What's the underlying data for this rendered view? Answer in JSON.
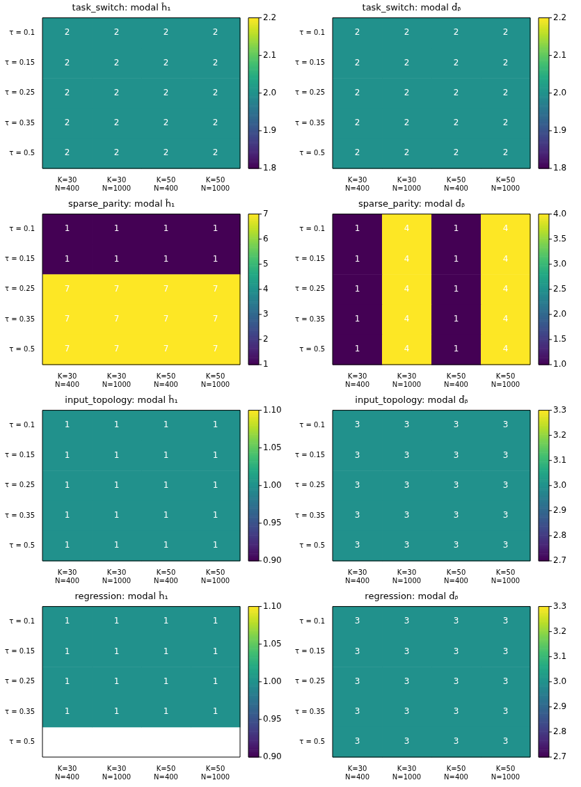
{
  "chart_data": [
    {
      "type": "heatmap",
      "title": "task_switch: modal ĥ₁",
      "categories": [
        "K=30 N=400",
        "K=30 N=1000",
        "K=50 N=400",
        "K=50 N=1000"
      ],
      "y_categories": [
        "τ = 0.1",
        "τ = 0.15",
        "τ = 0.25",
        "τ = 0.35",
        "τ = 0.5"
      ],
      "cells": [
        [
          2,
          2,
          2,
          2
        ],
        [
          2,
          2,
          2,
          2
        ],
        [
          2,
          2,
          2,
          2
        ],
        [
          2,
          2,
          2,
          2
        ],
        [
          2,
          2,
          2,
          2
        ]
      ],
      "clim": [
        1.8,
        2.2
      ],
      "cticks": [
        1.8,
        1.9,
        {
          "value": 2,
          "label": "2.0"
        },
        2.1,
        2.2
      ],
      "data_labels": true
    },
    {
      "type": "heatmap",
      "title": "task_switch: modal d̂ᵦ",
      "categories": [
        "K=30 N=400",
        "K=30 N=1000",
        "K=50 N=400",
        "K=50 N=1000"
      ],
      "y_categories": [
        "τ = 0.1",
        "τ = 0.15",
        "τ = 0.25",
        "τ = 0.35",
        "τ = 0.5"
      ],
      "cells": [
        [
          2,
          2,
          2,
          2
        ],
        [
          2,
          2,
          2,
          2
        ],
        [
          2,
          2,
          2,
          2
        ],
        [
          2,
          2,
          2,
          2
        ],
        [
          2,
          2,
          2,
          2
        ]
      ],
      "clim": [
        1.8,
        2.2
      ],
      "cticks": [
        1.8,
        1.9,
        {
          "value": 2,
          "label": "2.0"
        },
        2.1,
        2.2
      ],
      "data_labels": true
    },
    {
      "type": "heatmap",
      "title": "sparse_parity: modal ĥ₁",
      "categories": [
        "K=30 N=400",
        "K=30 N=1000",
        "K=50 N=400",
        "K=50 N=1000"
      ],
      "y_categories": [
        "τ = 0.1",
        "τ = 0.15",
        "τ = 0.25",
        "τ = 0.35",
        "τ = 0.5"
      ],
      "cells": [
        [
          1,
          1,
          1,
          1
        ],
        [
          1,
          1,
          1,
          1
        ],
        [
          7,
          7,
          7,
          7
        ],
        [
          7,
          7,
          7,
          7
        ],
        [
          7,
          7,
          7,
          7
        ]
      ],
      "clim": [
        1,
        7
      ],
      "cticks": [
        1,
        2,
        3,
        4,
        5,
        6,
        7
      ],
      "data_labels": true
    },
    {
      "type": "heatmap",
      "title": "sparse_parity: modal d̂ᵦ",
      "categories": [
        "K=30 N=400",
        "K=30 N=1000",
        "K=50 N=400",
        "K=50 N=1000"
      ],
      "y_categories": [
        "τ = 0.1",
        "τ = 0.15",
        "τ = 0.25",
        "τ = 0.35",
        "τ = 0.5"
      ],
      "cells": [
        [
          1,
          4,
          1,
          4
        ],
        [
          1,
          4,
          1,
          4
        ],
        [
          1,
          4,
          1,
          4
        ],
        [
          1,
          4,
          1,
          4
        ],
        [
          1,
          4,
          1,
          4
        ]
      ],
      "clim": [
        1,
        4
      ],
      "cticks": [
        {
          "value": 1,
          "label": "1.0"
        },
        1.5,
        {
          "value": 2,
          "label": "2.0"
        },
        2.5,
        {
          "value": 3,
          "label": "3.0"
        },
        3.5,
        {
          "value": 4,
          "label": "4.0"
        }
      ],
      "data_labels": true
    },
    {
      "type": "heatmap",
      "title": "input_topology: modal ĥ₁",
      "categories": [
        "K=30 N=400",
        "K=30 N=1000",
        "K=50 N=400",
        "K=50 N=1000"
      ],
      "y_categories": [
        "τ = 0.1",
        "τ = 0.15",
        "τ = 0.25",
        "τ = 0.35",
        "τ = 0.5"
      ],
      "cells": [
        [
          1,
          1,
          1,
          1
        ],
        [
          1,
          1,
          1,
          1
        ],
        [
          1,
          1,
          1,
          1
        ],
        [
          1,
          1,
          1,
          1
        ],
        [
          1,
          1,
          1,
          1
        ]
      ],
      "clim": [
        0.9,
        1.1
      ],
      "cticks": [
        {
          "value": 0.9,
          "label": "0.90"
        },
        0.95,
        {
          "value": 1,
          "label": "1.00"
        },
        1.05,
        {
          "value": 1.1,
          "label": "1.10"
        }
      ],
      "data_labels": true
    },
    {
      "type": "heatmap",
      "title": "input_topology: modal d̂ᵦ",
      "categories": [
        "K=30 N=400",
        "K=30 N=1000",
        "K=50 N=400",
        "K=50 N=1000"
      ],
      "y_categories": [
        "τ = 0.1",
        "τ = 0.15",
        "τ = 0.25",
        "τ = 0.35",
        "τ = 0.5"
      ],
      "cells": [
        [
          3,
          3,
          3,
          3
        ],
        [
          3,
          3,
          3,
          3
        ],
        [
          3,
          3,
          3,
          3
        ],
        [
          3,
          3,
          3,
          3
        ],
        [
          3,
          3,
          3,
          3
        ]
      ],
      "clim": [
        2.7,
        3.3
      ],
      "cticks": [
        2.7,
        2.8,
        2.9,
        {
          "value": 3,
          "label": "3.0"
        },
        3.1,
        3.2,
        3.3
      ],
      "data_labels": true
    },
    {
      "type": "heatmap",
      "title": "regression: modal ĥ₁",
      "categories": [
        "K=30 N=400",
        "K=30 N=1000",
        "K=50 N=400",
        "K=50 N=1000"
      ],
      "y_categories": [
        "τ = 0.1",
        "τ = 0.15",
        "τ = 0.25",
        "τ = 0.35",
        "τ = 0.5"
      ],
      "cells": [
        [
          1,
          1,
          1,
          1
        ],
        [
          1,
          1,
          1,
          1
        ],
        [
          1,
          1,
          1,
          1
        ],
        [
          1,
          1,
          1,
          1
        ],
        [
          null,
          null,
          null,
          null
        ]
      ],
      "clim": [
        0.9,
        1.1
      ],
      "cticks": [
        {
          "value": 0.9,
          "label": "0.90"
        },
        0.95,
        {
          "value": 1,
          "label": "1.00"
        },
        1.05,
        {
          "value": 1.1,
          "label": "1.10"
        }
      ],
      "data_labels": true
    },
    {
      "type": "heatmap",
      "title": "regression: modal d̂ᵦ",
      "categories": [
        "K=30 N=400",
        "K=30 N=1000",
        "K=50 N=400",
        "K=50 N=1000"
      ],
      "y_categories": [
        "τ = 0.1",
        "τ = 0.15",
        "τ = 0.25",
        "τ = 0.35",
        "τ = 0.5"
      ],
      "cells": [
        [
          3,
          3,
          3,
          3
        ],
        [
          3,
          3,
          3,
          3
        ],
        [
          3,
          3,
          3,
          3
        ],
        [
          3,
          3,
          3,
          3
        ],
        [
          3,
          3,
          3,
          3
        ]
      ],
      "clim": [
        2.7,
        3.3
      ],
      "cticks": [
        2.7,
        2.8,
        2.9,
        {
          "value": 3,
          "label": "3.0"
        },
        3.1,
        3.2,
        3.3
      ],
      "data_labels": true
    }
  ]
}
